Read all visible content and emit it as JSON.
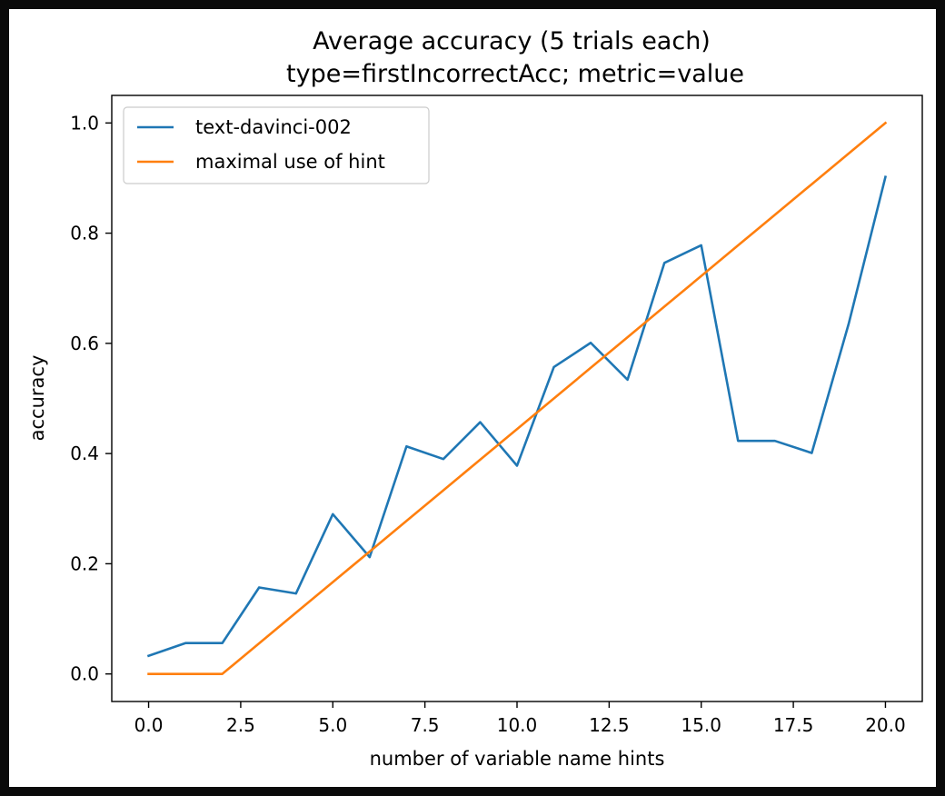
{
  "chart_data": {
    "type": "line",
    "title": "Average accuracy (5 trials each)",
    "subtitle": "type=firstIncorrectAcc; metric=value",
    "xlabel": "number of variable name hints",
    "ylabel": "accuracy",
    "xlim": [
      -1.0,
      21.0
    ],
    "ylim": [
      -0.05,
      1.05
    ],
    "xticks": [
      0.0,
      2.5,
      5.0,
      7.5,
      10.0,
      12.5,
      15.0,
      17.5,
      20.0
    ],
    "xtick_labels": [
      "0.0",
      "2.5",
      "5.0",
      "7.5",
      "10.0",
      "12.5",
      "15.0",
      "17.5",
      "20.0"
    ],
    "yticks": [
      0.0,
      0.2,
      0.4,
      0.6,
      0.8,
      1.0
    ],
    "ytick_labels": [
      "0.0",
      "0.2",
      "0.4",
      "0.6",
      "0.8",
      "1.0"
    ],
    "grid": false,
    "legend_position": "top-left",
    "series": [
      {
        "name": "text-davinci-002",
        "color": "#1f77b4",
        "x": [
          0,
          1,
          2,
          3,
          4,
          5,
          6,
          7,
          8,
          9,
          10,
          11,
          12,
          13,
          14,
          15,
          16,
          17,
          18,
          19,
          20
        ],
        "values": [
          0.033,
          0.056,
          0.056,
          0.157,
          0.146,
          0.29,
          0.212,
          0.413,
          0.39,
          0.457,
          0.378,
          0.557,
          0.601,
          0.534,
          0.746,
          0.778,
          0.423,
          0.423,
          0.401,
          0.635,
          0.902
        ]
      },
      {
        "name": "maximal use of hint",
        "color": "#ff7f0e",
        "x": [
          0,
          1,
          2,
          3,
          4,
          5,
          6,
          7,
          8,
          9,
          10,
          11,
          12,
          13,
          14,
          15,
          16,
          17,
          18,
          19,
          20
        ],
        "values": [
          0.0,
          0.0,
          0.0,
          0.0556,
          0.1111,
          0.1667,
          0.2222,
          0.2778,
          0.3333,
          0.3889,
          0.4444,
          0.5,
          0.5556,
          0.6111,
          0.6667,
          0.7222,
          0.7778,
          0.8333,
          0.8889,
          0.9444,
          1.0
        ]
      }
    ]
  }
}
